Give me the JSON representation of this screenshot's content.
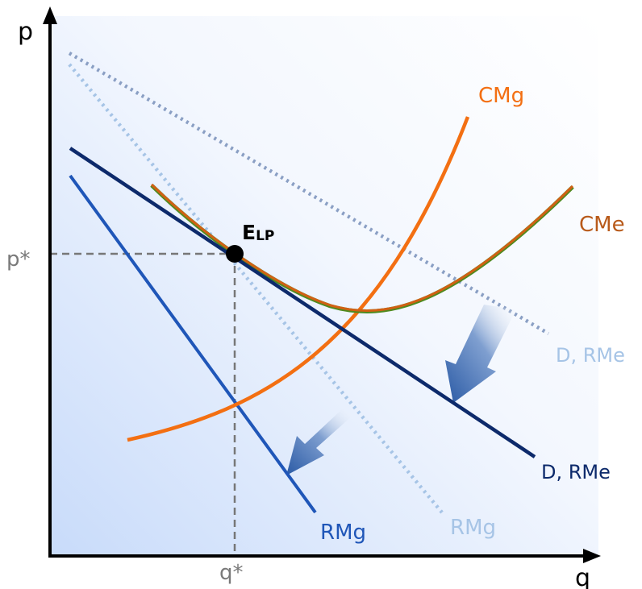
{
  "axes": {
    "y_label": "p",
    "x_label": "q",
    "p_star_label": "p*",
    "q_star_label": "q*"
  },
  "equilibrium": {
    "label_main": "E",
    "label_sub": "LP"
  },
  "curves": {
    "cmg": {
      "label": "CMg",
      "color": "#f36f12"
    },
    "cme": {
      "label": "CMe",
      "color": "#b85a1a",
      "under_color": "#4f8a1f"
    },
    "demand_new": {
      "label": "D, RMe",
      "color": "#0d2a6b"
    },
    "demand_old": {
      "label": "D, RMe",
      "color": "#a6c4e6",
      "dotted_color": "#8a9fc4"
    },
    "rmg_new": {
      "label": "RMg",
      "color": "#1f56b8"
    },
    "rmg_old": {
      "label": "RMg",
      "color": "#a6c4e6"
    }
  },
  "colors": {
    "axis": "#000000",
    "guide": "#777777",
    "background_gradient_start": "#ffffff",
    "background_gradient_end": "#cfe0fb",
    "arrow": "#2d5ea8"
  }
}
